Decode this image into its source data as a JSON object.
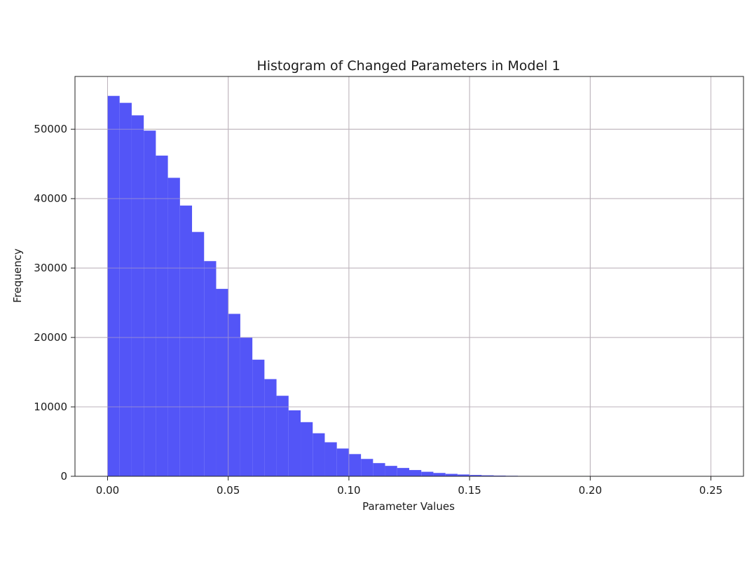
{
  "chart_data": {
    "type": "bar",
    "title": "Histogram of Changed Parameters in Model 1",
    "xlabel": "Parameter Values",
    "ylabel": "Frequency",
    "xlim": [
      -0.0135,
      0.2635
    ],
    "ylim": [
      0,
      57600
    ],
    "xticks": [
      0.0,
      0.05,
      0.1,
      0.15,
      0.2,
      0.25
    ],
    "xtick_labels": [
      "0.00",
      "0.05",
      "0.10",
      "0.15",
      "0.20",
      "0.25"
    ],
    "yticks": [
      0,
      10000,
      20000,
      30000,
      40000,
      50000
    ],
    "ytick_labels": [
      "0",
      "10000",
      "20000",
      "30000",
      "40000",
      "50000"
    ],
    "grid": true,
    "bar_color": "#4a4cf7",
    "bin_start": 0.0,
    "bin_width": 0.005,
    "values": [
      54800,
      53800,
      52000,
      49800,
      46200,
      43000,
      39000,
      35200,
      31000,
      27000,
      23400,
      20000,
      16800,
      14000,
      11600,
      9500,
      7800,
      6200,
      4900,
      4000,
      3200,
      2500,
      1900,
      1500,
      1200,
      900,
      650,
      480,
      350,
      260,
      190,
      140,
      100,
      75,
      55,
      40,
      30,
      20,
      15,
      10,
      8,
      6,
      5,
      4,
      3,
      2,
      2,
      1,
      1,
      1
    ]
  }
}
